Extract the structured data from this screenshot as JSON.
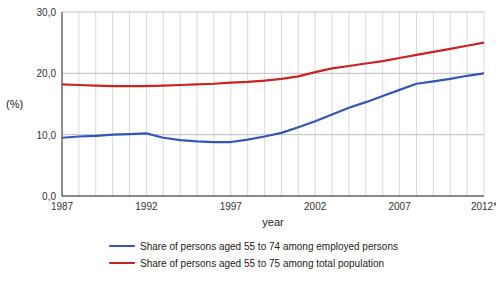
{
  "chart_data": {
    "type": "line",
    "x": [
      1987,
      1988,
      1989,
      1990,
      1991,
      1992,
      1993,
      1994,
      1995,
      1996,
      1997,
      1998,
      1999,
      2000,
      2001,
      2002,
      2003,
      2004,
      2005,
      2006,
      2007,
      2008,
      2009,
      2010,
      2011,
      2012
    ],
    "series": [
      {
        "name": "Share of persons aged 55 to 74 among employed persons",
        "color": "#3355BB",
        "values": [
          9.5,
          9.7,
          9.8,
          10.0,
          10.1,
          10.2,
          9.5,
          9.1,
          8.9,
          8.8,
          8.8,
          9.2,
          9.7,
          10.3,
          11.2,
          12.2,
          13.3,
          14.4,
          15.3,
          16.3,
          17.3,
          18.3,
          18.7,
          19.1,
          19.6,
          20.0
        ]
      },
      {
        "name": "Share of persons aged 55 to 75 among total population",
        "color": "#CC2222",
        "values": [
          18.2,
          18.1,
          18.0,
          17.9,
          17.9,
          17.9,
          18.0,
          18.1,
          18.2,
          18.3,
          18.5,
          18.6,
          18.8,
          19.1,
          19.5,
          20.2,
          20.8,
          21.2,
          21.6,
          22.0,
          22.5,
          23.0,
          23.5,
          24.0,
          24.5,
          25.0
        ]
      }
    ],
    "x_label": "year",
    "y_label": "(%)",
    "xlim": [
      1987,
      2012
    ],
    "xticks": [
      1987,
      1992,
      1997,
      2002,
      2007,
      {
        "value": 2012,
        "label": "2012*"
      }
    ],
    "ylim": [
      0,
      30
    ],
    "yticks": [
      {
        "value": 0.0,
        "label": "0,0"
      },
      {
        "value": 10.0,
        "label": "10,0"
      },
      {
        "value": 20.0,
        "label": "20,0"
      },
      {
        "value": 30.0,
        "label": "30,0"
      }
    ],
    "grid": true,
    "legend": "bottom"
  }
}
